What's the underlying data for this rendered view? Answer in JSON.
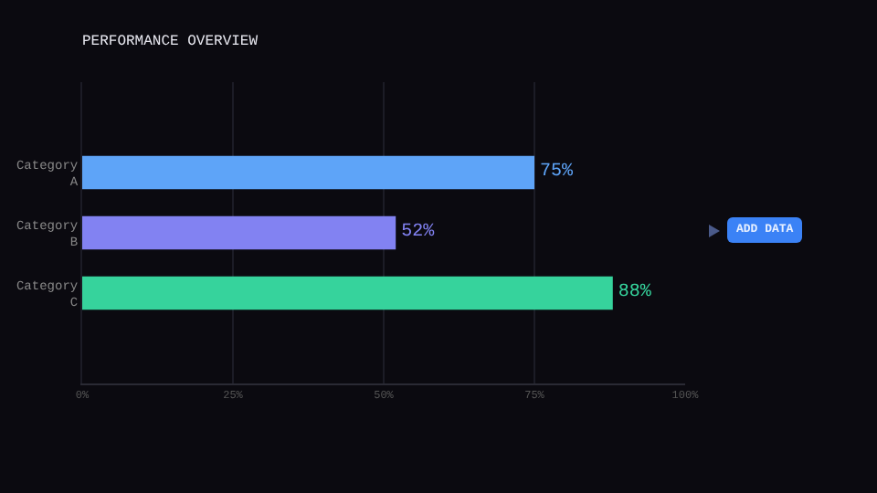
{
  "chart_data": {
    "type": "bar",
    "orientation": "horizontal",
    "title": "PERFORMANCE OVERVIEW",
    "categories": [
      "Category A",
      "Category B",
      "Category C"
    ],
    "values": [
      75,
      52,
      88
    ],
    "colors": [
      "#5ea4f8",
      "#8282f2",
      "#36d39c"
    ],
    "value_labels": [
      "75%",
      "52%",
      "88%"
    ],
    "xlim": [
      0,
      100
    ],
    "xticks": [
      {
        "value": 0,
        "label": "0%"
      },
      {
        "value": 25,
        "label": "25%"
      },
      {
        "value": 50,
        "label": "50%"
      },
      {
        "value": 75,
        "label": "75%"
      },
      {
        "value": 100,
        "label": "100%"
      }
    ],
    "grid": "x",
    "annotations": [
      "ADD DATA"
    ]
  }
}
